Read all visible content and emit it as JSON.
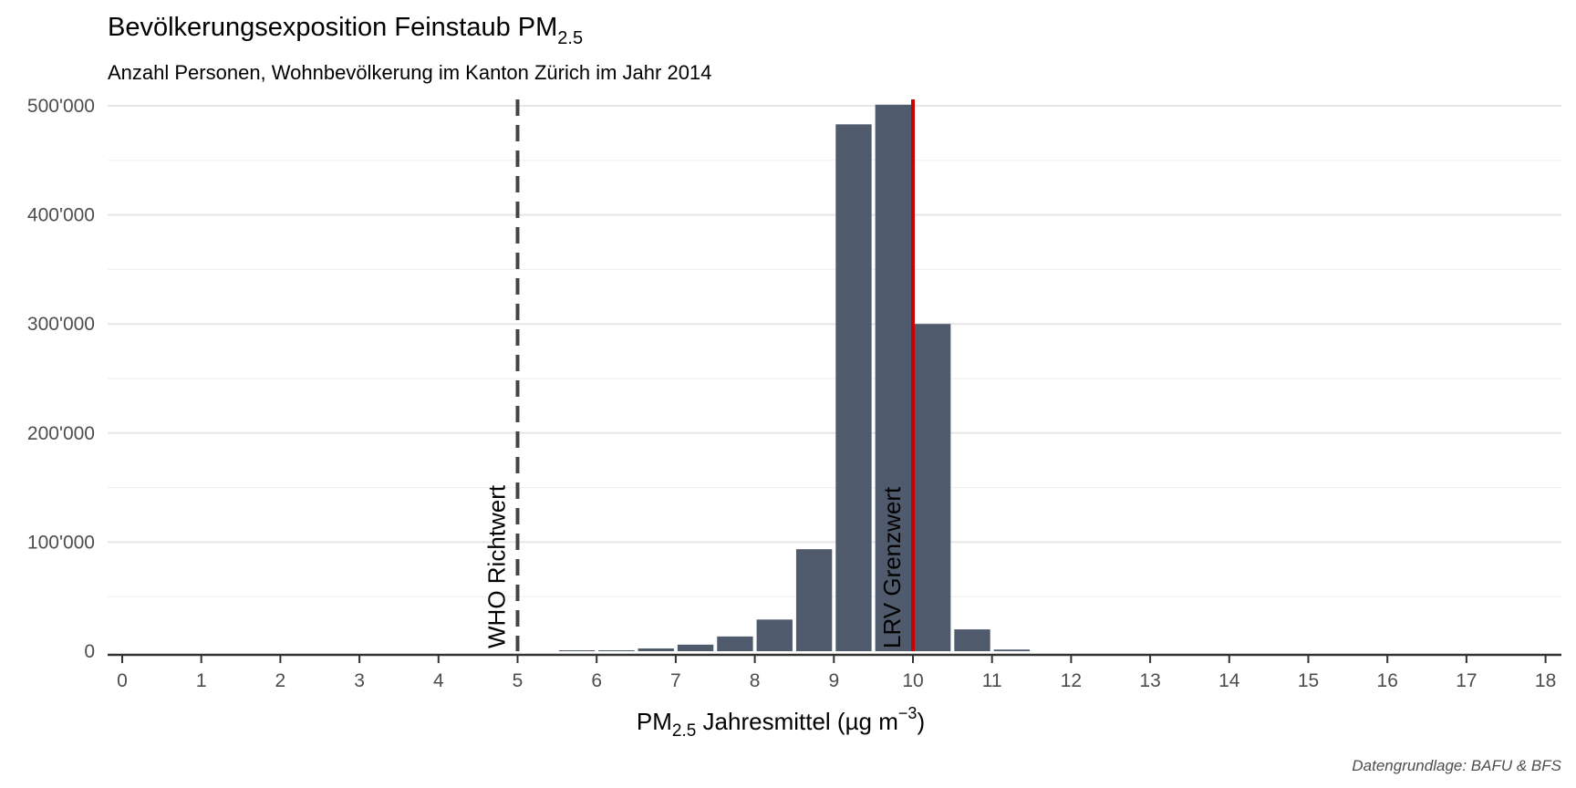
{
  "chart_data": {
    "type": "bar",
    "title": "Bevölkerungsexposition Feinstaub PM",
    "title_sub": "2.5",
    "subtitle": "Anzahl Personen, Wohnbevölkerung im Kanton Zürich im Jahr 2014",
    "xlabel_pre": "PM",
    "xlabel_sub": "2.5",
    "xlabel_post": " Jahresmittel (µg m",
    "xlabel_sup": "−3",
    "xlabel_close": ")",
    "caption": "Datengrundlage: BAFU & BFS",
    "xlim": [
      0,
      18
    ],
    "ylim": [
      0,
      500000
    ],
    "x_ticks": [
      "0",
      "1",
      "2",
      "3",
      "4",
      "5",
      "6",
      "7",
      "8",
      "9",
      "10",
      "11",
      "12",
      "13",
      "14",
      "15",
      "16",
      "17",
      "18"
    ],
    "y_ticks": [
      {
        "value": 0,
        "label": "0"
      },
      {
        "value": 100000,
        "label": "100'000"
      },
      {
        "value": 200000,
        "label": "200'000"
      },
      {
        "value": 300000,
        "label": "300'000"
      },
      {
        "value": 400000,
        "label": "400'000"
      },
      {
        "value": 500000,
        "label": "500'000"
      }
    ],
    "bar_width": 0.5,
    "bar_color": "#4f5a6d",
    "bars": [
      {
        "x": 5.75,
        "value": 300
      },
      {
        "x": 6.25,
        "value": 800
      },
      {
        "x": 6.75,
        "value": 2500
      },
      {
        "x": 7.25,
        "value": 6000
      },
      {
        "x": 7.75,
        "value": 13500
      },
      {
        "x": 8.25,
        "value": 29000
      },
      {
        "x": 8.75,
        "value": 93500
      },
      {
        "x": 9.25,
        "value": 483000
      },
      {
        "x": 9.75,
        "value": 501000
      },
      {
        "x": 10.25,
        "value": 300000
      },
      {
        "x": 10.75,
        "value": 20000
      },
      {
        "x": 11.25,
        "value": 1500
      }
    ],
    "reference_lines": [
      {
        "x": 5,
        "label": "WHO Richtwert",
        "style": "dashed",
        "color": "#444444"
      },
      {
        "x": 10,
        "label": "LRV Grenzwert",
        "style": "solid",
        "color": "#cc0000"
      }
    ],
    "grid": true,
    "legend": "none"
  }
}
